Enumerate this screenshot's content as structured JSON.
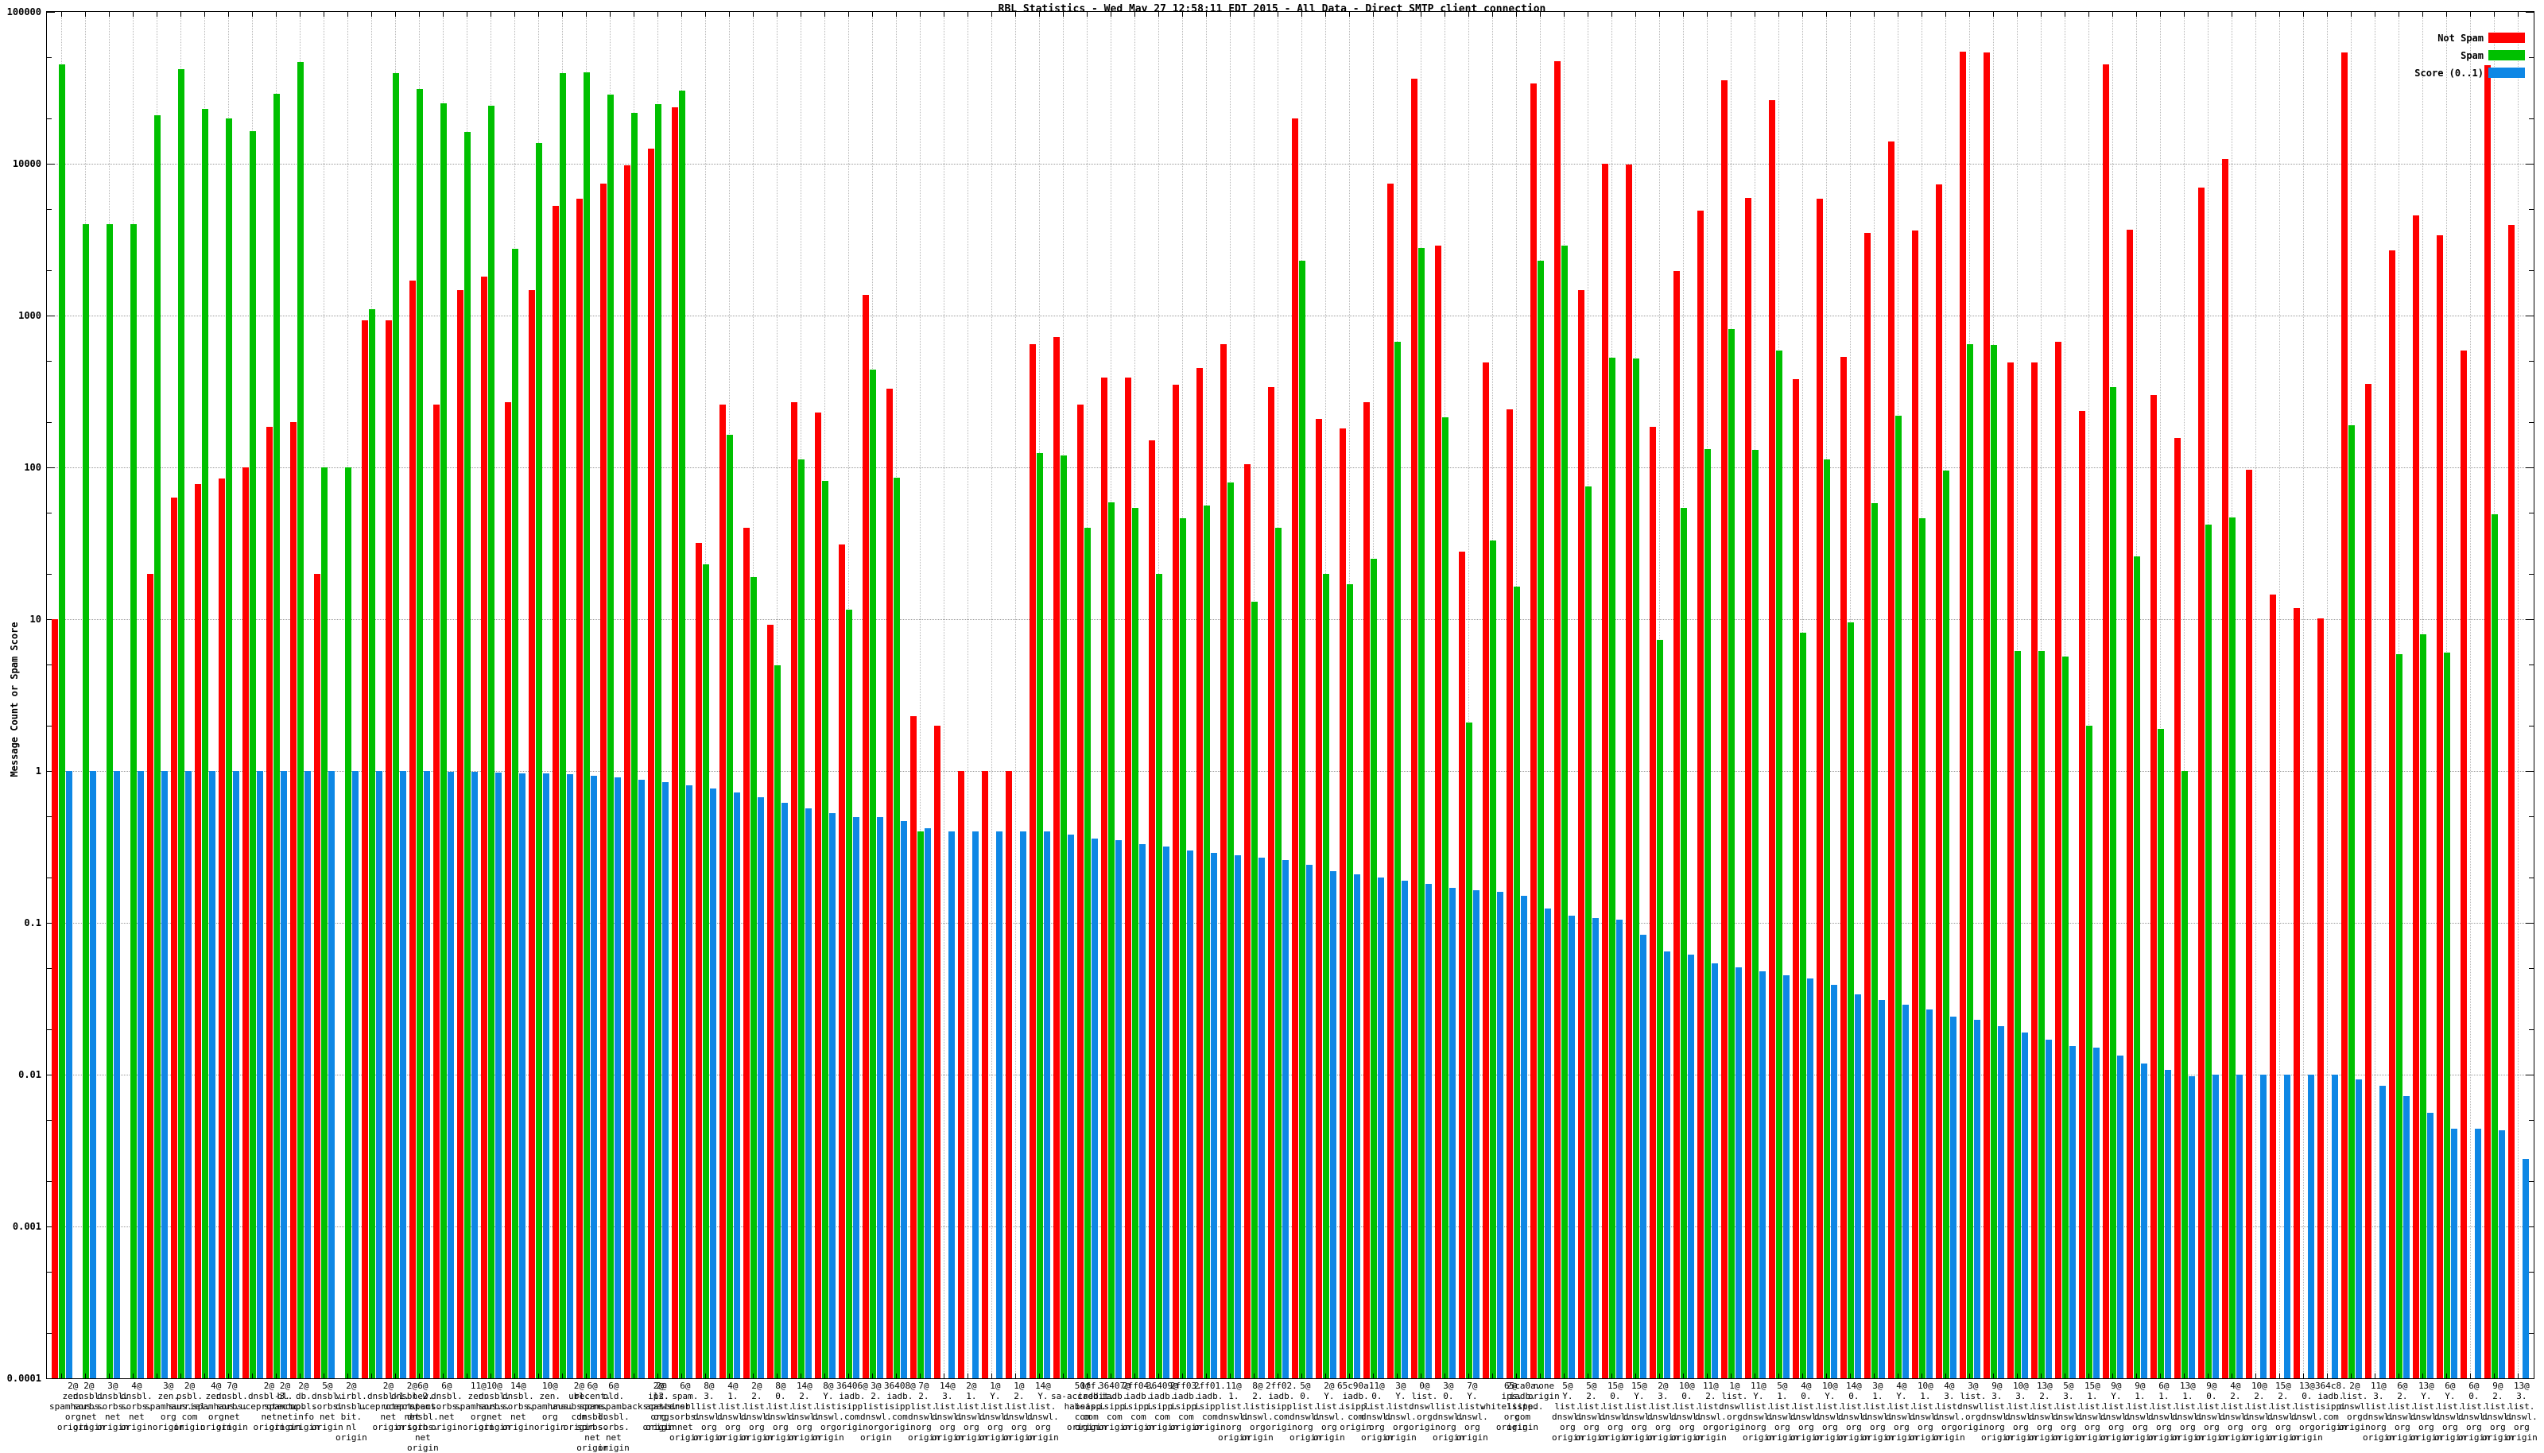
{
  "title": "RBL Statistics - Wed May 27 12:58:11 EDT 2015 - All Data - Direct SMTP client connection",
  "ylabel": "Message Count or Spam Score",
  "legend": [
    {
      "label": "Not Spam",
      "color": "#ff0000"
    },
    {
      "label": "Spam",
      "color": "#00c000"
    },
    {
      "label": "Score (0..1)",
      "color": "#0e87e5"
    }
  ],
  "chart_data": {
    "type": "bar",
    "title": "RBL Statistics - Wed May 27 12:58:11 EDT 2015 - All Data - Direct SMTP client connection",
    "ylabel": "Message Count or Spam Score",
    "y_scale": "log10",
    "ylim": [
      0.0001,
      100000
    ],
    "y_ticks": [
      "100000",
      "10000",
      "1000",
      "100",
      "10",
      "1",
      "0.1",
      "0.01",
      "0.001",
      "0.0001"
    ],
    "grid": true,
    "legend_position": "top-right",
    "series_names": [
      "Not Spam",
      "Spam",
      "Score (0..1)"
    ],
    "columns_format": [
      "label",
      "not_spam",
      "spam",
      "score"
    ],
    "columns": [
      [
        "2@ zen.spamhaus.org origin",
        10,
        45000,
        1.0
      ],
      [
        "2@ dnsbl.sorbs.net origin",
        null,
        4000,
        1.0
      ],
      [
        "3@ dnsbl.sorbs.net origin",
        null,
        4000,
        1.0
      ],
      [
        "4@ dnsbl.sorbs.net origin",
        null,
        4000,
        1.0
      ],
      [
        "3@ zen.spamhaus.org origin",
        20,
        21000,
        1.0
      ],
      [
        "2@ psbl.surriel.com origin",
        63,
        42000,
        1.0
      ],
      [
        "4@ zen.spamhaus.org origin",
        78,
        23000,
        1.0
      ],
      [
        "7@ dnsbl.sorbs.net origin",
        85,
        20000,
        1.0
      ],
      [
        "2@ dnsbl-3.uceprotect.net origin",
        100,
        16500,
        1.0
      ],
      [
        "2@ bl.spamcop.net origin",
        185,
        29000,
        1.0
      ],
      [
        "2@ db.wpbl.info origin",
        200,
        47000,
        1.0
      ],
      [
        "5@ dnsbl.sorbs.net origin",
        20,
        100,
        1.0
      ],
      [
        "2@ virbl.dnsbl.bit.nl origin",
        null,
        100,
        1.0
      ],
      [
        "2@ dnsbl-1.uceprotect.net origin",
        930,
        1100,
        1.0
      ],
      [
        "2@ dnsbl-2.uceprotect.net origin",
        930,
        39500,
        1.0
      ],
      [
        "6@ new.spam.dnsbl.sorbs.net origin",
        1700,
        31000,
        1.0
      ],
      [
        "6@ dnsbl.sorbs.net origin",
        260,
        25000,
        0.99
      ],
      [
        "11@ zen.spamhaus.org origin",
        1470,
        16300,
        0.99
      ],
      [
        "10@ dnsbl.sorbs.net origin",
        1800,
        24000,
        0.98
      ],
      [
        "14@ dnsbl.sorbs.net origin",
        270,
        2750,
        0.97
      ],
      [
        "10@ zen.spamhaus.org origin",
        1480,
        13700,
        0.96
      ],
      [
        "2@ ubl.unsubscore.com origin",
        5300,
        39500,
        0.95
      ],
      [
        "6@ recent.spam.dnsbl.sorbs.net origin",
        5900,
        40000,
        0.93
      ],
      [
        "6@ old.spam.dnsbl.sorbs.net origin",
        7400,
        28500,
        0.91
      ],
      [
        "2@ ips.backscatterer.org origin",
        9800,
        21700,
        0.88
      ],
      [
        "2@ l2.apews.org origin",
        12600,
        24600,
        0.85
      ],
      [
        "6@ spam.dnsbl.sorbs.net origin",
        23500,
        30200,
        0.81
      ],
      [
        "8@ 3.list.dnswl.org origin",
        32,
        23,
        0.77
      ],
      [
        "4@ 1.list.dnswl.org origin",
        260,
        164,
        0.72
      ],
      [
        "2@ 2.list.dnswl.org origin",
        40,
        19,
        0.67
      ],
      [
        "8@ 0.list.dnswl.org origin",
        9.2,
        5,
        0.62
      ],
      [
        "14@ 2.list.dnswl.org origin",
        270,
        113,
        0.57
      ],
      [
        "8@ Y.list.dnswl.org origin",
        230,
        82,
        0.53
      ],
      [
        "36406@ iadb.isipp.com origin",
        31,
        11.5,
        0.5
      ],
      [
        "3@ 2.list.dnswl.org origin",
        1370,
        440,
        0.5
      ],
      [
        "36408@ iadb.isipp.com origin",
        330,
        86,
        0.47
      ],
      [
        "7@ 2.list.dnswl.org origin",
        2.3,
        0.4,
        0.42
      ],
      [
        "14@ 3.list.dnswl.org origin",
        2.0,
        null,
        0.4
      ],
      [
        "2@ 1.list.dnswl.org origin",
        1.0,
        null,
        0.4
      ],
      [
        "1@ Y.list.dnswl.org origin",
        1.0,
        null,
        0.4
      ],
      [
        "1@ 2.list.dnswl.org origin",
        1.0,
        null,
        0.4
      ],
      [
        "14@ Y.list.dnswl.org origin",
        650,
        125,
        0.4
      ],
      [
        "50@ sa-accredit.habeas.com origin",
        720,
        120,
        0.38
      ],
      [
        "1ff.iadb.isipp.com origin",
        260,
        40,
        0.36
      ],
      [
        "36407@ iadb.isipp.com origin",
        390,
        59,
        0.35
      ],
      [
        "2ff04.iadb.isipp.com origin",
        390,
        54,
        0.33
      ],
      [
        "36409@ iadb.isipp.com origin",
        150,
        20,
        0.32
      ],
      [
        "2ff03.iadb.isipp.com origin",
        350,
        46,
        0.3
      ],
      [
        "2ff01.iadb.isipp.com origin",
        450,
        56,
        0.29
      ],
      [
        "11@ 1.list.dnswl.org origin",
        650,
        80,
        0.28
      ],
      [
        "8@ 2.list.dnswl.org origin",
        105,
        13,
        0.27
      ],
      [
        "2ff02.iadb.isipp.com origin",
        340,
        40,
        0.26
      ],
      [
        "5@ 0.list.dnswl.org origin",
        20000,
        2300,
        0.24
      ],
      [
        "2@ Y.list.dnswl.org origin",
        210,
        20,
        0.22
      ],
      [
        "65c90a.iadb.isipp.com origin",
        180,
        17,
        0.21
      ],
      [
        "11@ 0.list.dnswl.org origin",
        270,
        25,
        0.2
      ],
      [
        "3@ Y.list.dnswl.org origin",
        7400,
        670,
        0.19
      ],
      [
        "0@ list.dnswl.org origin",
        36500,
        2800,
        0.18
      ],
      [
        "3@ 0.list.dnswl.org origin",
        2900,
        215,
        0.17
      ],
      [
        "7@ Y.list.dnswl.org origin",
        28,
        2.1,
        0.165
      ],
      [
        "2@ ips.whitelisted.org origin",
        490,
        33,
        0.16
      ],
      [
        "65ca0a.iadb.isipp.com origin",
        240,
        16.5,
        0.15
      ],
      [
        "none origin",
        34000,
        2300,
        0.125
      ],
      [
        "5@ Y.list.dnswl.org origin",
        47500,
        2900,
        0.112
      ],
      [
        "5@ 2.list.dnswl.org origin",
        1480,
        75,
        0.108
      ],
      [
        "15@ 0.list.dnswl.org origin",
        10000,
        525,
        0.105
      ],
      [
        "15@ Y.list.dnswl.org origin",
        9900,
        520,
        0.084
      ],
      [
        "2@ 3.list.dnswl.org origin",
        185,
        7.3,
        0.065
      ],
      [
        "10@ 0.list.dnswl.org origin",
        1970,
        54,
        0.062
      ],
      [
        "11@ 2.list.dnswl.org origin",
        4900,
        132,
        0.054
      ],
      [
        "1@ list.dnswl.org origin",
        35500,
        820,
        0.051
      ],
      [
        "11@ Y.list.dnswl.org origin",
        5950,
        131,
        0.048
      ],
      [
        "5@ 1.list.dnswl.org origin",
        26400,
        590,
        0.045
      ],
      [
        "4@ 0.list.dnswl.org origin",
        380,
        8.2,
        0.043
      ],
      [
        "10@ Y.list.dnswl.org origin",
        5900,
        113,
        0.039
      ],
      [
        "14@ 0.list.dnswl.org origin",
        535,
        9.5,
        0.034
      ],
      [
        "3@ 1.list.dnswl.org origin",
        3500,
        58,
        0.031
      ],
      [
        "4@ Y.list.dnswl.org origin",
        14100,
        218,
        0.029
      ],
      [
        "10@ 1.list.dnswl.org origin",
        3650,
        46,
        0.027
      ],
      [
        "4@ 3.list.dnswl.org origin",
        7300,
        95,
        0.024
      ],
      [
        "3@ list.dnswl.org origin",
        55000,
        650,
        0.023
      ],
      [
        "9@ 3.list.dnswl.org origin",
        54000,
        640,
        0.021
      ],
      [
        "10@ 3.list.dnswl.org origin",
        490,
        6.2,
        0.019
      ],
      [
        "13@ 2.list.dnswl.org origin",
        490,
        6.2,
        0.017
      ],
      [
        "5@ 3.list.dnswl.org origin",
        670,
        5.7,
        0.0155
      ],
      [
        "15@ 1.list.dnswl.org origin",
        235,
        2.0,
        0.015
      ],
      [
        "9@ Y.list.dnswl.org origin",
        45000,
        340,
        0.0133
      ],
      [
        "9@ 1.list.dnswl.org origin",
        3700,
        26,
        0.0118
      ],
      [
        "6@ 1.list.dnswl.org origin",
        300,
        1.9,
        0.0107
      ],
      [
        "13@ 1.list.dnswl.org origin",
        157,
        1.0,
        0.0098
      ],
      [
        "9@ 0.list.dnswl.org origin",
        7000,
        42,
        0.01
      ],
      [
        "4@ 2.list.dnswl.org origin",
        10700,
        47,
        0.01
      ],
      [
        "10@ 2.list.dnswl.org origin",
        96,
        null,
        0.01
      ],
      [
        "15@ 2.list.dnswl.org origin",
        14.5,
        null,
        0.01
      ],
      [
        "13@ 0.list.dnswl.org origin",
        11.8,
        null,
        0.01
      ],
      [
        "364c8.iadb.isipp.com origin",
        10.1,
        null,
        0.01
      ],
      [
        "2@ list.dnswl.org origin",
        54000,
        190,
        0.0093
      ],
      [
        "11@ 3.list.dnswl.org origin",
        355,
        null,
        0.0085
      ],
      [
        "6@ 2.list.dnswl.org origin",
        2700,
        5.9,
        0.0072
      ],
      [
        "13@ Y.list.dnswl.org origin",
        4550,
        8.0,
        0.0056
      ],
      [
        "6@ Y.list.dnswl.org origin",
        3400,
        6.0,
        0.0044
      ],
      [
        "6@ 0.list.dnswl.org origin",
        590,
        null,
        0.0044
      ],
      [
        "9@ 2.list.dnswl.org origin",
        44500,
        49,
        0.0043
      ],
      [
        "13@ 3.list.dnswl.org origin",
        3950,
        null,
        0.0028
      ]
    ]
  }
}
